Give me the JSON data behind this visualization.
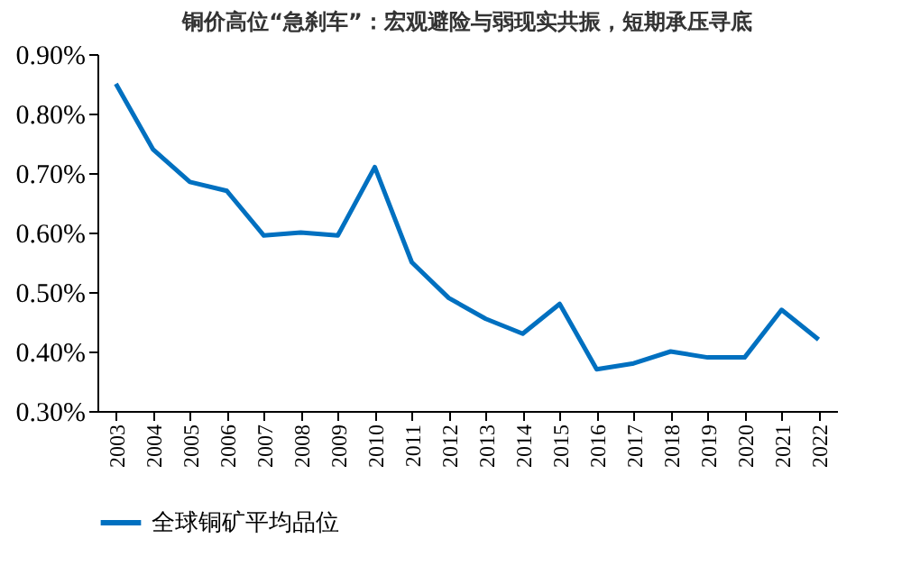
{
  "chart_data": {
    "type": "line",
    "title": "铜价高位“急刹车”：宏观避险与弱现实共振，短期承压寻底",
    "categories": [
      "2003",
      "2004",
      "2005",
      "2006",
      "2007",
      "2008",
      "2009",
      "2010",
      "2011",
      "2012",
      "2013",
      "2014",
      "2015",
      "2016",
      "2017",
      "2018",
      "2019",
      "2020",
      "2021",
      "2022"
    ],
    "series": [
      {
        "name": "全球铜矿平均品位",
        "color": "#0070c0",
        "values": [
          0.85,
          0.74,
          0.685,
          0.67,
          0.595,
          0.6,
          0.595,
          0.71,
          0.55,
          0.49,
          0.455,
          0.43,
          0.48,
          0.37,
          0.38,
          0.4,
          0.39,
          0.39,
          0.47,
          0.42
        ]
      }
    ],
    "ylim": [
      0.3,
      0.9
    ],
    "yticks": [
      {
        "value": 0.3,
        "label": "0.30%"
      },
      {
        "value": 0.4,
        "label": "0.40%"
      },
      {
        "value": 0.5,
        "label": "0.50%"
      },
      {
        "value": 0.6,
        "label": "0.60%"
      },
      {
        "value": 0.7,
        "label": "0.70%"
      },
      {
        "value": 0.8,
        "label": "0.80%"
      },
      {
        "value": 0.9,
        "label": "0.90%"
      }
    ],
    "grid": false,
    "legend": "bottom",
    "marker": "none",
    "line_style": "solid"
  }
}
